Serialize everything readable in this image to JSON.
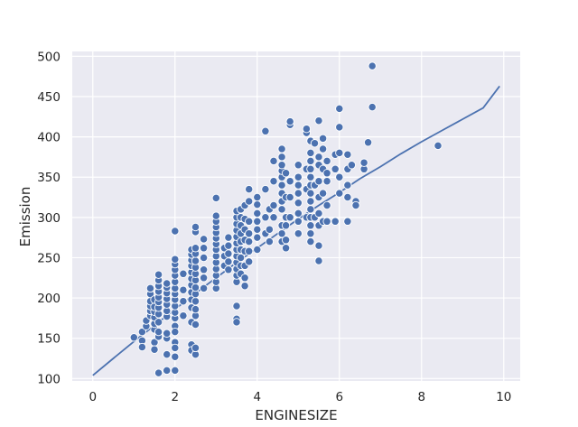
{
  "chart_data": {
    "type": "scatter",
    "title": "",
    "xlabel": "ENGINESIZE",
    "ylabel": "Emission",
    "xlim": [
      -0.5,
      10.4
    ],
    "ylim": [
      97,
      506
    ],
    "xticks": [
      0,
      2,
      4,
      6,
      8,
      10
    ],
    "yticks": [
      100,
      150,
      200,
      250,
      300,
      350,
      400,
      450,
      500
    ],
    "grid": true,
    "colors": {
      "background": "#eaeaf2",
      "grid": "#ffffff",
      "point": "#4c72b0",
      "point_edge": "#ffffff",
      "line": "#4c72b0"
    },
    "series": [
      {
        "kind": "scatter",
        "points": [
          [
            1.0,
            151
          ],
          [
            1.2,
            158
          ],
          [
            1.2,
            147
          ],
          [
            1.2,
            139
          ],
          [
            1.3,
            165
          ],
          [
            1.3,
            172
          ],
          [
            1.4,
            178
          ],
          [
            1.4,
            184
          ],
          [
            1.4,
            190
          ],
          [
            1.4,
            196
          ],
          [
            1.4,
            205
          ],
          [
            1.4,
            212
          ],
          [
            1.5,
            161
          ],
          [
            1.5,
            168
          ],
          [
            1.5,
            176
          ],
          [
            1.5,
            183
          ],
          [
            1.5,
            189
          ],
          [
            1.5,
            198
          ],
          [
            1.5,
            145
          ],
          [
            1.5,
            136
          ],
          [
            1.6,
            170
          ],
          [
            1.6,
            180
          ],
          [
            1.6,
            188
          ],
          [
            1.6,
            195
          ],
          [
            1.6,
            201
          ],
          [
            1.6,
            208
          ],
          [
            1.6,
            215
          ],
          [
            1.6,
            222
          ],
          [
            1.6,
            229
          ],
          [
            1.6,
            107
          ],
          [
            1.6,
            152
          ],
          [
            1.6,
            158
          ],
          [
            1.8,
            177
          ],
          [
            1.8,
            184
          ],
          [
            1.8,
            192
          ],
          [
            1.8,
            199
          ],
          [
            1.8,
            206
          ],
          [
            1.8,
            213
          ],
          [
            1.8,
            218
          ],
          [
            1.8,
            150
          ],
          [
            1.8,
            156
          ],
          [
            1.8,
            130
          ],
          [
            1.8,
            110
          ],
          [
            2.0,
            165
          ],
          [
            2.0,
            175
          ],
          [
            2.0,
            182
          ],
          [
            2.0,
            190
          ],
          [
            2.0,
            198
          ],
          [
            2.0,
            205
          ],
          [
            2.0,
            212
          ],
          [
            2.0,
            220
          ],
          [
            2.0,
            228
          ],
          [
            2.0,
            235
          ],
          [
            2.0,
            242
          ],
          [
            2.0,
            248
          ],
          [
            2.0,
            283
          ],
          [
            2.0,
            145
          ],
          [
            2.0,
            138
          ],
          [
            2.0,
            127
          ],
          [
            2.0,
            110
          ],
          [
            2.0,
            158
          ],
          [
            2.2,
            178
          ],
          [
            2.2,
            196
          ],
          [
            2.2,
            210
          ],
          [
            2.2,
            230
          ],
          [
            2.4,
            170
          ],
          [
            2.4,
            188
          ],
          [
            2.4,
            198
          ],
          [
            2.4,
            207
          ],
          [
            2.4,
            216
          ],
          [
            2.4,
            224
          ],
          [
            2.4,
            232
          ],
          [
            2.4,
            240
          ],
          [
            2.4,
            247
          ],
          [
            2.4,
            254
          ],
          [
            2.4,
            260
          ],
          [
            2.4,
            142
          ],
          [
            2.4,
            135
          ],
          [
            2.5,
            130
          ],
          [
            2.5,
            138
          ],
          [
            2.5,
            167
          ],
          [
            2.5,
            178
          ],
          [
            2.5,
            186
          ],
          [
            2.5,
            196
          ],
          [
            2.5,
            205
          ],
          [
            2.5,
            213
          ],
          [
            2.5,
            222
          ],
          [
            2.5,
            230
          ],
          [
            2.5,
            238
          ],
          [
            2.5,
            246
          ],
          [
            2.5,
            255
          ],
          [
            2.5,
            262
          ],
          [
            2.5,
            282
          ],
          [
            2.5,
            288
          ],
          [
            2.7,
            212
          ],
          [
            2.7,
            225
          ],
          [
            2.7,
            235
          ],
          [
            2.7,
            250
          ],
          [
            2.7,
            262
          ],
          [
            2.7,
            273
          ],
          [
            3.0,
            212
          ],
          [
            3.0,
            220
          ],
          [
            3.0,
            228
          ],
          [
            3.0,
            236
          ],
          [
            3.0,
            244
          ],
          [
            3.0,
            252
          ],
          [
            3.0,
            260
          ],
          [
            3.0,
            267
          ],
          [
            3.0,
            274
          ],
          [
            3.0,
            281
          ],
          [
            3.0,
            288
          ],
          [
            3.0,
            295
          ],
          [
            3.0,
            302
          ],
          [
            3.0,
            324
          ],
          [
            3.2,
            240
          ],
          [
            3.2,
            252
          ],
          [
            3.2,
            262
          ],
          [
            3.3,
            235
          ],
          [
            3.3,
            245
          ],
          [
            3.3,
            255
          ],
          [
            3.3,
            265
          ],
          [
            3.3,
            275
          ],
          [
            3.5,
            174
          ],
          [
            3.5,
            170
          ],
          [
            3.5,
            190
          ],
          [
            3.5,
            220
          ],
          [
            3.5,
            228
          ],
          [
            3.5,
            236
          ],
          [
            3.5,
            244
          ],
          [
            3.5,
            252
          ],
          [
            3.5,
            260
          ],
          [
            3.5,
            268
          ],
          [
            3.5,
            276
          ],
          [
            3.5,
            284
          ],
          [
            3.5,
            292
          ],
          [
            3.5,
            300
          ],
          [
            3.5,
            308
          ],
          [
            3.6,
            230
          ],
          [
            3.6,
            240
          ],
          [
            3.6,
            250
          ],
          [
            3.6,
            260
          ],
          [
            3.6,
            270
          ],
          [
            3.6,
            280
          ],
          [
            3.6,
            290
          ],
          [
            3.6,
            300
          ],
          [
            3.6,
            310
          ],
          [
            3.7,
            215
          ],
          [
            3.7,
            225
          ],
          [
            3.7,
            240
          ],
          [
            3.7,
            258
          ],
          [
            3.7,
            272
          ],
          [
            3.7,
            285
          ],
          [
            3.7,
            298
          ],
          [
            3.7,
            315
          ],
          [
            3.8,
            245
          ],
          [
            3.8,
            258
          ],
          [
            3.8,
            270
          ],
          [
            3.8,
            280
          ],
          [
            3.8,
            295
          ],
          [
            3.8,
            320
          ],
          [
            3.8,
            335
          ],
          [
            4.0,
            260
          ],
          [
            4.0,
            275
          ],
          [
            4.0,
            285
          ],
          [
            4.0,
            295
          ],
          [
            4.0,
            305
          ],
          [
            4.0,
            316
          ],
          [
            4.0,
            325
          ],
          [
            4.2,
            280
          ],
          [
            4.2,
            300
          ],
          [
            4.2,
            335
          ],
          [
            4.2,
            407
          ],
          [
            4.3,
            270
          ],
          [
            4.3,
            285
          ],
          [
            4.3,
            310
          ],
          [
            4.4,
            300
          ],
          [
            4.4,
            315
          ],
          [
            4.4,
            345
          ],
          [
            4.4,
            370
          ],
          [
            4.6,
            270
          ],
          [
            4.6,
            280
          ],
          [
            4.6,
            290
          ],
          [
            4.6,
            310
          ],
          [
            4.6,
            320
          ],
          [
            4.6,
            330
          ],
          [
            4.6,
            340
          ],
          [
            4.6,
            350
          ],
          [
            4.6,
            358
          ],
          [
            4.6,
            365
          ],
          [
            4.6,
            375
          ],
          [
            4.6,
            385
          ],
          [
            4.7,
            262
          ],
          [
            4.7,
            272
          ],
          [
            4.7,
            290
          ],
          [
            4.7,
            300
          ],
          [
            4.7,
            325
          ],
          [
            4.7,
            355
          ],
          [
            4.8,
            300
          ],
          [
            4.8,
            325
          ],
          [
            4.8,
            345
          ],
          [
            4.8,
            415
          ],
          [
            4.8,
            419
          ],
          [
            5.0,
            280
          ],
          [
            5.0,
            295
          ],
          [
            5.0,
            305
          ],
          [
            5.0,
            318
          ],
          [
            5.0,
            330
          ],
          [
            5.0,
            340
          ],
          [
            5.0,
            350
          ],
          [
            5.0,
            365
          ],
          [
            5.2,
            300
          ],
          [
            5.2,
            335
          ],
          [
            5.2,
            360
          ],
          [
            5.2,
            405
          ],
          [
            5.2,
            410
          ],
          [
            5.3,
            270
          ],
          [
            5.3,
            280
          ],
          [
            5.3,
            290
          ],
          [
            5.3,
            300
          ],
          [
            5.3,
            310
          ],
          [
            5.3,
            320
          ],
          [
            5.3,
            330
          ],
          [
            5.3,
            340
          ],
          [
            5.3,
            350
          ],
          [
            5.3,
            360
          ],
          [
            5.3,
            370
          ],
          [
            5.3,
            380
          ],
          [
            5.3,
            395
          ],
          [
            5.4,
            300
          ],
          [
            5.4,
            340
          ],
          [
            5.4,
            392
          ],
          [
            5.5,
            246
          ],
          [
            5.5,
            265
          ],
          [
            5.5,
            290
          ],
          [
            5.5,
            305
          ],
          [
            5.5,
            325
          ],
          [
            5.5,
            345
          ],
          [
            5.5,
            365
          ],
          [
            5.5,
            375
          ],
          [
            5.5,
            420
          ],
          [
            5.6,
            295
          ],
          [
            5.6,
            330
          ],
          [
            5.6,
            360
          ],
          [
            5.6,
            385
          ],
          [
            5.6,
            398
          ],
          [
            5.7,
            295
          ],
          [
            5.7,
            315
          ],
          [
            5.7,
            345
          ],
          [
            5.7,
            355
          ],
          [
            5.7,
            370
          ],
          [
            5.9,
            295
          ],
          [
            5.9,
            360
          ],
          [
            5.9,
            378
          ],
          [
            6.0,
            330
          ],
          [
            6.0,
            350
          ],
          [
            6.0,
            380
          ],
          [
            6.0,
            412
          ],
          [
            6.0,
            435
          ],
          [
            6.2,
            295
          ],
          [
            6.2,
            325
          ],
          [
            6.2,
            340
          ],
          [
            6.2,
            360
          ],
          [
            6.2,
            378
          ],
          [
            6.3,
            365
          ],
          [
            6.4,
            320
          ],
          [
            6.4,
            315
          ],
          [
            6.6,
            360
          ],
          [
            6.6,
            368
          ],
          [
            6.7,
            393
          ],
          [
            6.8,
            437
          ],
          [
            6.8,
            488
          ],
          [
            8.4,
            389
          ]
        ]
      },
      {
        "kind": "fit-curve",
        "points": [
          [
            0,
            104
          ],
          [
            0.5,
            125
          ],
          [
            1,
            146
          ],
          [
            1.5,
            166
          ],
          [
            2,
            186
          ],
          [
            2.5,
            206
          ],
          [
            3,
            225
          ],
          [
            3.5,
            244
          ],
          [
            4,
            262
          ],
          [
            4.5,
            280
          ],
          [
            5,
            298
          ],
          [
            5.5,
            315
          ],
          [
            6,
            331
          ],
          [
            6.5,
            348
          ],
          [
            7,
            363
          ],
          [
            7.5,
            379
          ],
          [
            8,
            394
          ],
          [
            8.5,
            408
          ],
          [
            9,
            422
          ],
          [
            9.5,
            436
          ],
          [
            9.9,
            463
          ]
        ]
      }
    ]
  }
}
